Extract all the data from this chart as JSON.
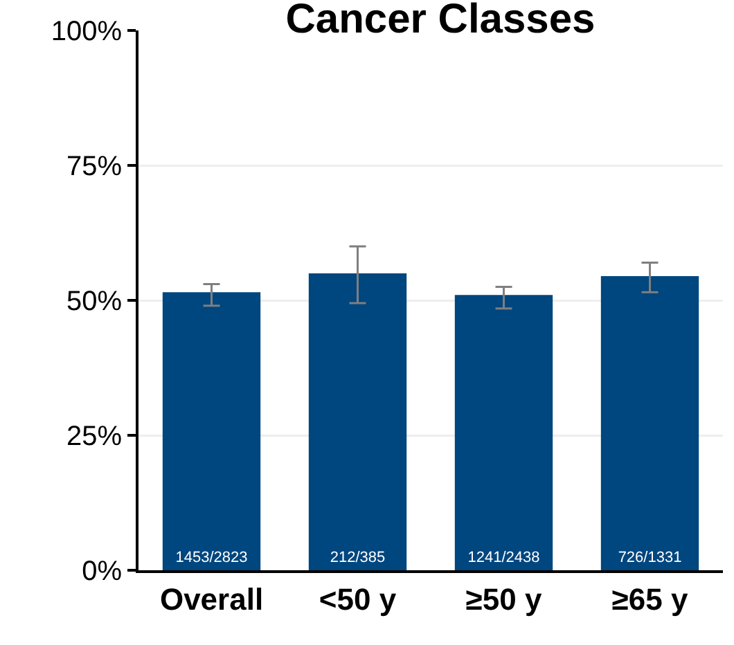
{
  "chart_data": {
    "type": "bar",
    "title": "Cancer Classes",
    "categories": [
      "Overall",
      "<50 y",
      "≥50 y",
      "≥65 y"
    ],
    "values": [
      51.5,
      55,
      51,
      54.5
    ],
    "errors": [
      [
        49,
        53
      ],
      [
        49.5,
        60
      ],
      [
        48.5,
        52.5
      ],
      [
        51.5,
        57
      ]
    ],
    "value_labels": [
      "1453/2823",
      "212/385",
      "1241/2438",
      "726/1331"
    ],
    "color": "#00467f",
    "ylim": [
      0,
      100
    ],
    "yticks": [
      {
        "value": 0,
        "label": "0%"
      },
      {
        "value": 25,
        "label": "25%"
      },
      {
        "value": 50,
        "label": "50%"
      },
      {
        "value": 75,
        "label": "75%"
      },
      {
        "value": 100,
        "label": "100%"
      }
    ],
    "grid": "y"
  }
}
